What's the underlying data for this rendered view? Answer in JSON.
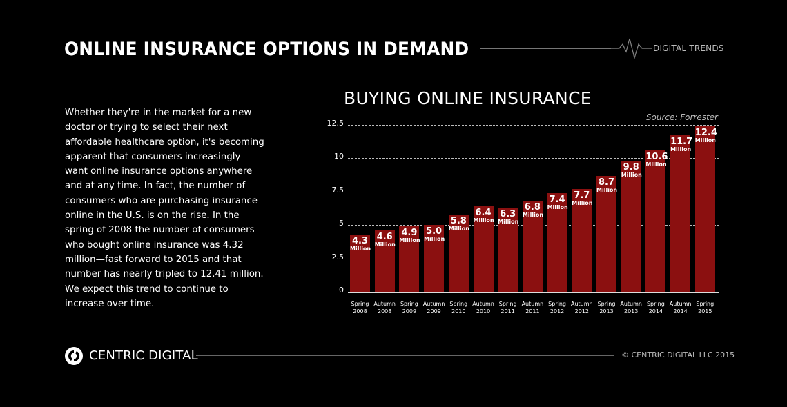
{
  "header": {
    "title": "ONLINE INSURANCE OPTIONS IN DEMAND",
    "tag": "DIGITAL TRENDS",
    "pulse_icon": "heartbeat-line-icon"
  },
  "body": {
    "paragraph": "Whether they're in the market for a new doctor or trying to select their next affordable healthcare option, it's becoming apparent that consumers increasingly want online insurance options anywhere and at any time. In fact, the number of consumers who are purchasing insurance online in the U.S. is on the rise. In the spring of 2008 the number of consumers who bought online insurance was 4.32 million—fast forward to 2015 and that number has nearly tripled to 12.41 million. We expect this trend to continue to increase over time."
  },
  "chart": {
    "title": "BUYING ONLINE INSURANCE",
    "source": "Source: Forrester",
    "unit_label": "Million",
    "bar_color": "#8b1010",
    "yticks": [
      "12.5",
      "10",
      "7.5",
      "5",
      "2.5",
      "0"
    ]
  },
  "chart_data": {
    "type": "bar",
    "title": "BUYING ONLINE INSURANCE",
    "subtitle": "Source: Forrester",
    "xlabel": "",
    "ylabel": "",
    "categories": [
      "Spring 2008",
      "Autumn 2008",
      "Spring 2009",
      "Autumn 2009",
      "Spring 2010",
      "Autumn 2010",
      "Spring 2011",
      "Autumn 2011",
      "Spring 2012",
      "Autumn 2012",
      "Spring 2013",
      "Autumn 2013",
      "Spring 2014",
      "Autumn 2014",
      "Spring 2015"
    ],
    "values": [
      4.3,
      4.6,
      4.9,
      5.0,
      5.8,
      6.4,
      6.3,
      6.8,
      7.4,
      7.7,
      8.7,
      9.8,
      10.6,
      11.7,
      12.4
    ],
    "value_labels": [
      "4.3",
      "4.6",
      "4.9",
      "5.0",
      "5.8",
      "6.4",
      "6.3",
      "6.8",
      "7.4",
      "7.7",
      "8.7",
      "9.8",
      "10.6",
      "11.7",
      "12.4"
    ],
    "units": "Million",
    "ylim": [
      0,
      12.5
    ],
    "yticks": [
      0,
      2.5,
      5,
      7.5,
      10,
      12.5
    ],
    "grid": true,
    "legend": null
  },
  "footer": {
    "brand": "CENTRIC DIGITAL",
    "logo_icon": "centric-digital-logo-icon",
    "copyright": "© CENTRIC DIGITAL LLC 2015"
  }
}
